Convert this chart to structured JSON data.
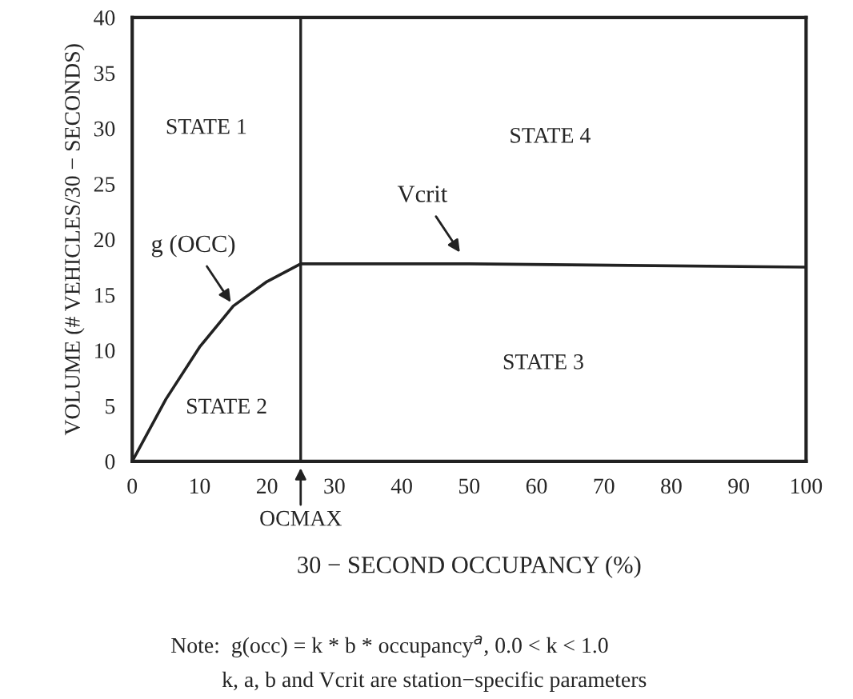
{
  "chart_data": {
    "type": "line",
    "xlabel": "30 − SECOND OCCUPANCY (%)",
    "ylabel": "VOLUME (# VEHICLES/30 − SECONDS)",
    "x": [
      0,
      5,
      10,
      15,
      20,
      25,
      50,
      100
    ],
    "series": [
      {
        "color": "#222222",
        "values": [
          0,
          5.6,
          10.3,
          14.0,
          16.2,
          17.8,
          17.8,
          17.5
        ]
      }
    ],
    "xlim": [
      0,
      100
    ],
    "ylim": [
      0,
      40
    ],
    "xticks": [
      0,
      10,
      20,
      30,
      40,
      50,
      60,
      70,
      80,
      90,
      100
    ],
    "yticks": [
      0,
      5,
      10,
      15,
      20,
      25,
      30,
      35,
      40
    ],
    "grid": false,
    "marker": "none",
    "line_style": "solid",
    "ref_lines": [
      {
        "axis": "x",
        "value": 25,
        "label": "OCMAX",
        "color": "#222222"
      }
    ],
    "annotations": [
      "STATE 1",
      "STATE 2",
      "STATE 3",
      "STATE 4",
      {
        "text": "g (OCC)",
        "x": 15,
        "y": 14.0
      },
      {
        "text": "Vcrit",
        "x": 49,
        "y": 18.5
      },
      "Note:  g(occ) = k * b * occupancy$^{a}$, 0.0 < k < 1.0",
      "k, a, b and Vcrit are station−specific parameters"
    ]
  }
}
